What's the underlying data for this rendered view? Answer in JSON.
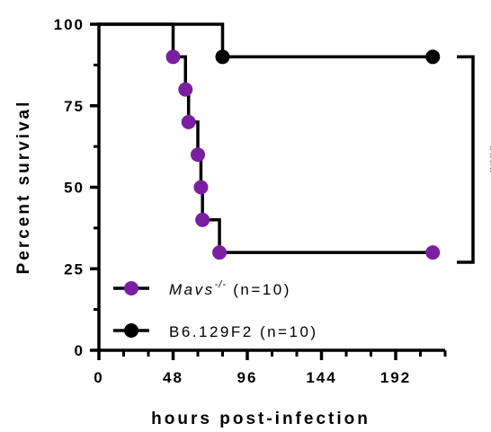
{
  "chart_data": {
    "type": "line",
    "subtype": "kaplan-meier survival",
    "xlabel": "hours post-infection",
    "ylabel": "Percent survival",
    "xlim": [
      0,
      224
    ],
    "ylim": [
      0,
      100
    ],
    "xticks": [
      0,
      48,
      96,
      144,
      192
    ],
    "yticks": [
      0,
      25,
      50,
      75,
      100
    ],
    "grid": false,
    "legend_position": "bottom-left",
    "series": [
      {
        "name_main": "Mavs",
        "name_sup": "-/-",
        "name_suffix": " (n=10)",
        "color": "#7B1FA2",
        "points": [
          {
            "x": 0,
            "y": 100
          },
          {
            "x": 48,
            "y": 90
          },
          {
            "x": 56,
            "y": 80
          },
          {
            "x": 58,
            "y": 70
          },
          {
            "x": 64,
            "y": 60
          },
          {
            "x": 66,
            "y": 50
          },
          {
            "x": 67,
            "y": 40
          },
          {
            "x": 78,
            "y": 30
          },
          {
            "x": 216,
            "y": 30
          }
        ],
        "markers": [
          {
            "x": 48,
            "y": 90
          },
          {
            "x": 56,
            "y": 80
          },
          {
            "x": 58,
            "y": 70
          },
          {
            "x": 64,
            "y": 60
          },
          {
            "x": 66,
            "y": 50
          },
          {
            "x": 67,
            "y": 40
          },
          {
            "x": 78,
            "y": 30
          },
          {
            "x": 216,
            "y": 30
          }
        ]
      },
      {
        "name": "B6.129F2 (n=10)",
        "color": "#000000",
        "points": [
          {
            "x": 0,
            "y": 100
          },
          {
            "x": 80,
            "y": 90
          },
          {
            "x": 216,
            "y": 90
          }
        ],
        "markers": [
          {
            "x": 80,
            "y": 90
          },
          {
            "x": 216,
            "y": 90
          }
        ]
      }
    ],
    "annotation": {
      "text": "****",
      "bracket_y": [
        90,
        27
      ]
    }
  }
}
